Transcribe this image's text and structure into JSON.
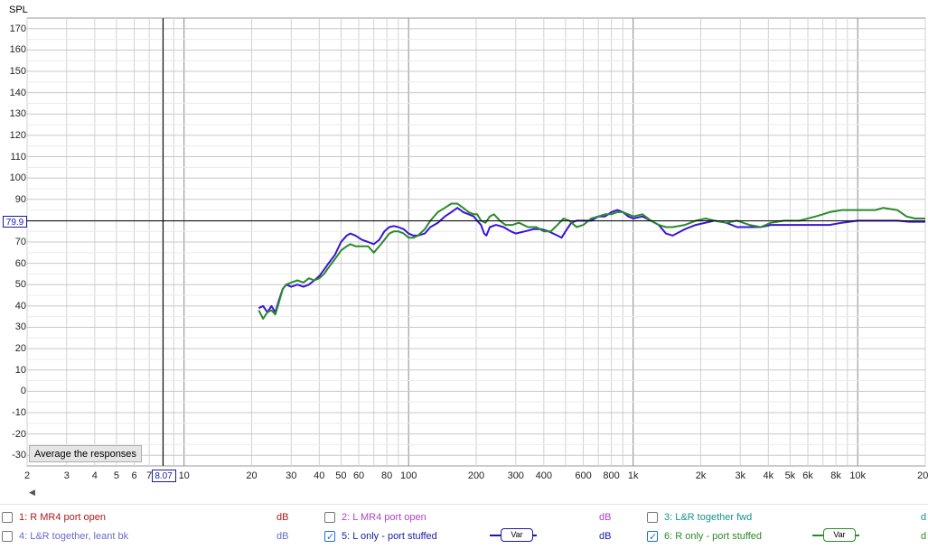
{
  "graph": {
    "y_axis_label": "SPL",
    "y_ticks": [
      "170",
      "160",
      "150",
      "140",
      "130",
      "120",
      "110",
      "100",
      "90",
      "80",
      "70",
      "60",
      "50",
      "40",
      "30",
      "20",
      "10",
      "0",
      "-10",
      "-20",
      "-30"
    ],
    "x_ticks": [
      {
        "label": "2",
        "f": 2
      },
      {
        "label": "3",
        "f": 3
      },
      {
        "label": "4",
        "f": 4
      },
      {
        "label": "5",
        "f": 5
      },
      {
        "label": "6",
        "f": 6
      },
      {
        "label": "7",
        "f": 7
      },
      {
        "label": "10",
        "f": 10
      },
      {
        "label": "20",
        "f": 20
      },
      {
        "label": "30",
        "f": 30
      },
      {
        "label": "40",
        "f": 40
      },
      {
        "label": "50",
        "f": 50
      },
      {
        "label": "60",
        "f": 60
      },
      {
        "label": "80",
        "f": 80
      },
      {
        "label": "100",
        "f": 100
      },
      {
        "label": "200",
        "f": 200
      },
      {
        "label": "300",
        "f": 300
      },
      {
        "label": "400",
        "f": 400
      },
      {
        "label": "600",
        "f": 600
      },
      {
        "label": "800",
        "f": 800
      },
      {
        "label": "1k",
        "f": 1000
      },
      {
        "label": "2k",
        "f": 2000
      },
      {
        "label": "3k",
        "f": 3000
      },
      {
        "label": "4k",
        "f": 4000
      },
      {
        "label": "5k",
        "f": 5000
      },
      {
        "label": "6k",
        "f": 6000
      },
      {
        "label": "8k",
        "f": 8000
      },
      {
        "label": "10k",
        "f": 10000
      },
      {
        "label": "20k",
        "f": 20000
      }
    ],
    "cursor_y": "79.9",
    "cursor_x": "8.07",
    "average_button": "Average the responses"
  },
  "legend": [
    {
      "label": "1: R MR4 port open",
      "unit": "dB",
      "checked": false,
      "color": "#b01818"
    },
    {
      "label": "2: L MR4 port open",
      "unit": "dB",
      "checked": false,
      "color": "#b040c8"
    },
    {
      "label": "3: L&R together fwd",
      "unit": "d",
      "checked": false,
      "color": "#1a8f8f"
    },
    {
      "label": "4: L&R together, leant bk",
      "unit": "dB",
      "checked": false,
      "color": "#6a6acb"
    },
    {
      "label": "5: L only - port stuffed",
      "unit": "dB",
      "checked": true,
      "color": "#1a1aa0",
      "var": "Var"
    },
    {
      "label": "6: R only - port stuffed",
      "unit": "d",
      "checked": true,
      "color": "#2a8a2a",
      "var": "Var"
    }
  ],
  "chart_data": {
    "type": "line",
    "xlabel": "",
    "ylabel": "SPL",
    "x_scale": "log",
    "xlim": [
      2,
      20000
    ],
    "ylim": [
      -35,
      175
    ],
    "cursor": {
      "x": 8.07,
      "y": 79.9
    },
    "series": [
      {
        "name": "5: L only - port stuffed",
        "color": "#3a14d8",
        "points": [
          [
            21.5,
            39
          ],
          [
            22.5,
            40
          ],
          [
            23.5,
            37
          ],
          [
            24.5,
            40
          ],
          [
            25.5,
            37
          ],
          [
            26.5,
            43
          ],
          [
            27.5,
            48
          ],
          [
            28.5,
            50
          ],
          [
            30,
            49
          ],
          [
            32,
            50
          ],
          [
            34,
            49
          ],
          [
            36,
            50
          ],
          [
            38,
            52
          ],
          [
            40,
            54
          ],
          [
            42,
            57
          ],
          [
            44,
            60
          ],
          [
            47,
            64
          ],
          [
            50,
            70
          ],
          [
            53,
            73
          ],
          [
            55,
            74
          ],
          [
            58,
            73
          ],
          [
            62,
            71
          ],
          [
            66,
            70
          ],
          [
            70,
            69
          ],
          [
            74,
            71
          ],
          [
            78,
            75
          ],
          [
            82,
            77
          ],
          [
            86,
            77.5
          ],
          [
            90,
            77
          ],
          [
            95,
            76
          ],
          [
            100,
            74
          ],
          [
            105,
            73
          ],
          [
            110,
            73
          ],
          [
            118,
            74
          ],
          [
            125,
            77
          ],
          [
            135,
            79
          ],
          [
            145,
            82
          ],
          [
            155,
            84
          ],
          [
            165,
            86
          ],
          [
            175,
            84
          ],
          [
            185,
            83
          ],
          [
            195,
            82
          ],
          [
            202,
            80
          ],
          [
            210,
            78
          ],
          [
            217,
            74
          ],
          [
            222,
            73
          ],
          [
            230,
            77
          ],
          [
            245,
            78
          ],
          [
            265,
            77
          ],
          [
            285,
            75
          ],
          [
            300,
            74
          ],
          [
            330,
            75
          ],
          [
            360,
            76
          ],
          [
            390,
            76
          ],
          [
            420,
            75
          ],
          [
            460,
            73
          ],
          [
            480,
            72
          ],
          [
            500,
            75
          ],
          [
            530,
            79
          ],
          [
            560,
            80
          ],
          [
            600,
            80
          ],
          [
            650,
            80
          ],
          [
            700,
            82
          ],
          [
            750,
            82
          ],
          [
            800,
            84
          ],
          [
            850,
            85
          ],
          [
            900,
            84
          ],
          [
            950,
            82
          ],
          [
            1000,
            81
          ],
          [
            1100,
            82
          ],
          [
            1200,
            80
          ],
          [
            1300,
            78
          ],
          [
            1400,
            74
          ],
          [
            1500,
            73
          ],
          [
            1700,
            76
          ],
          [
            1900,
            78
          ],
          [
            2100,
            79
          ],
          [
            2300,
            80
          ],
          [
            2600,
            79
          ],
          [
            2900,
            77
          ],
          [
            3300,
            77
          ],
          [
            3700,
            77
          ],
          [
            4100,
            78
          ],
          [
            4700,
            78
          ],
          [
            5500,
            78
          ],
          [
            6500,
            78
          ],
          [
            7500,
            78
          ],
          [
            8500,
            79
          ],
          [
            10000,
            80
          ],
          [
            12000,
            80
          ],
          [
            15000,
            80
          ],
          [
            17000,
            79.5
          ],
          [
            20000,
            79.5
          ]
        ]
      },
      {
        "name": "6: R only - port stuffed",
        "color": "#2a8a2a",
        "points": [
          [
            21.5,
            38
          ],
          [
            22.5,
            34
          ],
          [
            23.5,
            37
          ],
          [
            24.5,
            38
          ],
          [
            25.5,
            36
          ],
          [
            26.5,
            42
          ],
          [
            27.5,
            48
          ],
          [
            28.5,
            50
          ],
          [
            30,
            51
          ],
          [
            32,
            52
          ],
          [
            34,
            51
          ],
          [
            36,
            53
          ],
          [
            38,
            52
          ],
          [
            40,
            53
          ],
          [
            42,
            55
          ],
          [
            44,
            58
          ],
          [
            47,
            62
          ],
          [
            50,
            66
          ],
          [
            53,
            68
          ],
          [
            55,
            69
          ],
          [
            58,
            68
          ],
          [
            62,
            68
          ],
          [
            66,
            68
          ],
          [
            70,
            65
          ],
          [
            74,
            68
          ],
          [
            78,
            71
          ],
          [
            82,
            74
          ],
          [
            86,
            75
          ],
          [
            90,
            75
          ],
          [
            95,
            74
          ],
          [
            100,
            72
          ],
          [
            105,
            72
          ],
          [
            110,
            73
          ],
          [
            118,
            76
          ],
          [
            125,
            80
          ],
          [
            135,
            84
          ],
          [
            145,
            86
          ],
          [
            155,
            88
          ],
          [
            165,
            88
          ],
          [
            175,
            86
          ],
          [
            185,
            84
          ],
          [
            195,
            83
          ],
          [
            202,
            83
          ],
          [
            210,
            80
          ],
          [
            220,
            79
          ],
          [
            230,
            82
          ],
          [
            240,
            83
          ],
          [
            255,
            80
          ],
          [
            270,
            78
          ],
          [
            290,
            78
          ],
          [
            310,
            79
          ],
          [
            340,
            77
          ],
          [
            370,
            77
          ],
          [
            400,
            75
          ],
          [
            430,
            75
          ],
          [
            460,
            78
          ],
          [
            490,
            81
          ],
          [
            520,
            80
          ],
          [
            560,
            77
          ],
          [
            600,
            78
          ],
          [
            650,
            81
          ],
          [
            700,
            82
          ],
          [
            750,
            83
          ],
          [
            800,
            83
          ],
          [
            850,
            84
          ],
          [
            900,
            84
          ],
          [
            950,
            83
          ],
          [
            1000,
            82
          ],
          [
            1100,
            83
          ],
          [
            1200,
            80
          ],
          [
            1300,
            78
          ],
          [
            1400,
            77
          ],
          [
            1500,
            77
          ],
          [
            1700,
            78
          ],
          [
            1900,
            80
          ],
          [
            2100,
            81
          ],
          [
            2300,
            80
          ],
          [
            2600,
            79
          ],
          [
            2900,
            80
          ],
          [
            3300,
            78
          ],
          [
            3700,
            77
          ],
          [
            4100,
            79
          ],
          [
            4700,
            80
          ],
          [
            5500,
            80
          ],
          [
            6500,
            82
          ],
          [
            7000,
            83
          ],
          [
            7500,
            84
          ],
          [
            8500,
            85
          ],
          [
            10000,
            85
          ],
          [
            11000,
            85
          ],
          [
            12000,
            85
          ],
          [
            13000,
            86
          ],
          [
            15000,
            85
          ],
          [
            16500,
            82
          ],
          [
            18000,
            81
          ],
          [
            20000,
            81
          ]
        ]
      }
    ]
  }
}
